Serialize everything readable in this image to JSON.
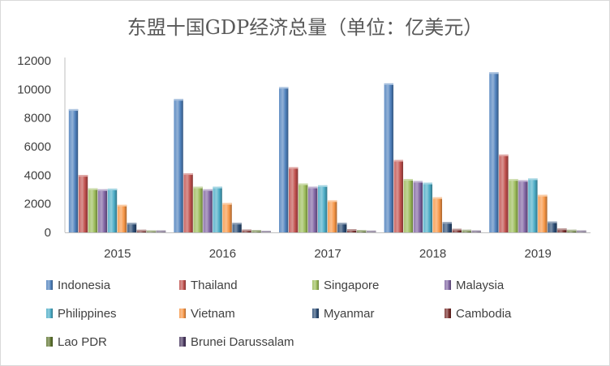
{
  "chart_data": {
    "type": "bar",
    "title": "东盟十国GDP经济总量（单位：亿美元）",
    "categories": [
      "2015",
      "2016",
      "2017",
      "2018",
      "2019"
    ],
    "ylim": [
      0,
      12000
    ],
    "yticks": [
      0,
      2000,
      4000,
      6000,
      8000,
      10000,
      12000
    ],
    "grid": false,
    "legend_position": "bottom",
    "series": [
      {
        "name": "Indonesia",
        "color": "#4F81BD",
        "values": [
          8610,
          9320,
          10160,
          10420,
          11190
        ]
      },
      {
        "name": "Thailand",
        "color": "#C0504D",
        "values": [
          4010,
          4130,
          4560,
          5060,
          5440
        ]
      },
      {
        "name": "Singapore",
        "color": "#9BBB59",
        "values": [
          3080,
          3190,
          3420,
          3730,
          3720
        ]
      },
      {
        "name": "Malaysia",
        "color": "#8064A2",
        "values": [
          3010,
          3010,
          3190,
          3590,
          3650
        ]
      },
      {
        "name": "Philippines",
        "color": "#4BACC6",
        "values": [
          3060,
          3190,
          3290,
          3470,
          3770
        ]
      },
      {
        "name": "Vietnam",
        "color": "#F79646",
        "values": [
          1930,
          2050,
          2240,
          2450,
          2620
        ]
      },
      {
        "name": "Myanmar",
        "color": "#2C4D75",
        "values": [
          670,
          670,
          670,
          720,
          760
        ]
      },
      {
        "name": "Cambodia",
        "color": "#772C2A",
        "values": [
          180,
          200,
          220,
          250,
          270
        ]
      },
      {
        "name": "Lao PDR",
        "color": "#5F7530",
        "values": [
          140,
          160,
          170,
          180,
          180
        ]
      },
      {
        "name": "Brunei Darussalam",
        "color": "#4D3B62",
        "values": [
          130,
          110,
          120,
          140,
          130
        ]
      }
    ]
  }
}
